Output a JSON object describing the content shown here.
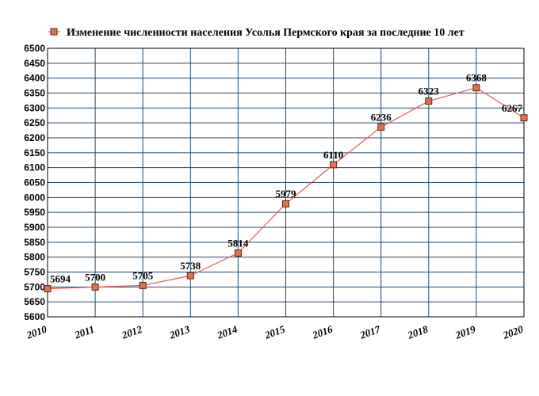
{
  "chart_data": {
    "type": "line",
    "title": "Изменение численности населения Усолья Пермского края за последние 10 лет",
    "legend_position": "top",
    "grid": true,
    "xlabel": "",
    "ylabel": "",
    "ylim": [
      5600,
      6500
    ],
    "y_ticks": [
      "5600",
      "5650",
      "5700",
      "5750",
      "5800",
      "5850",
      "5900",
      "5950",
      "6000",
      "6050",
      "6100",
      "6150",
      "6200",
      "6250",
      "6300",
      "6350",
      "6400",
      "6450",
      "6500"
    ],
    "categories": [
      "2010",
      "2011",
      "2012",
      "2013",
      "2014",
      "2015",
      "2016",
      "2017",
      "2018",
      "2019",
      "2020"
    ],
    "series": [
      {
        "name": "Изменение численности населения Усолья Пермского края за последние 10 лет",
        "values": [
          5694,
          5700,
          5705,
          5738,
          5814,
          5979,
          6110,
          6236,
          6323,
          6368,
          6267
        ],
        "labels": [
          "5694",
          "5700",
          "5705",
          "5738",
          "5814",
          "5979",
          "6110",
          "6236",
          "6323",
          "6368",
          "6267"
        ]
      }
    ],
    "colors": {
      "line": "#e05a50",
      "marker_fill": "#e07050",
      "marker_stroke": "#5a2a10",
      "grid": "#1f4a6e",
      "plot_border": "#000000"
    }
  }
}
